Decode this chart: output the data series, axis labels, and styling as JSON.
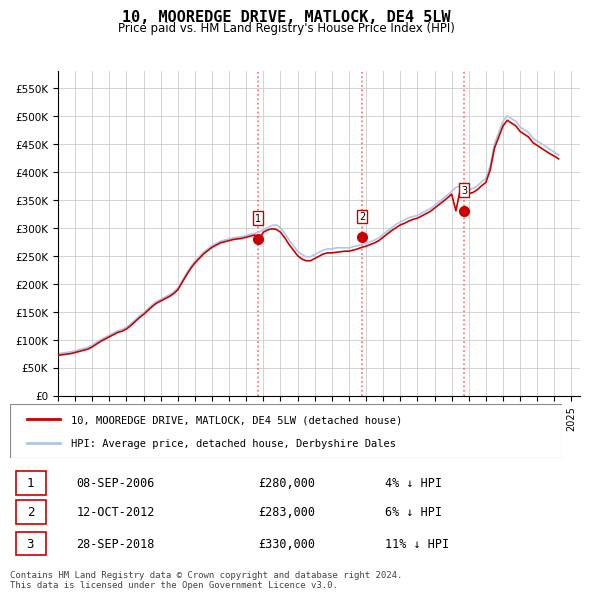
{
  "title": "10, MOOREDGE DRIVE, MATLOCK, DE4 5LW",
  "subtitle": "Price paid vs. HM Land Registry's House Price Index (HPI)",
  "ylabel_ticks": [
    "£0",
    "£50K",
    "£100K",
    "£150K",
    "£200K",
    "£250K",
    "£300K",
    "£350K",
    "£400K",
    "£450K",
    "£500K",
    "£550K"
  ],
  "ytick_values": [
    0,
    50000,
    100000,
    150000,
    200000,
    250000,
    300000,
    350000,
    400000,
    450000,
    500000,
    550000
  ],
  "ylim": [
    0,
    580000
  ],
  "xlim_start": 1995.0,
  "xlim_end": 2025.5,
  "hpi_color": "#aec6e8",
  "price_color": "#cc0000",
  "sale_marker_color": "#cc0000",
  "sale_marker_bg": "#cc0000",
  "vline_color": "#ff6666",
  "vline_style": "dotted",
  "grid_color": "#cccccc",
  "background_color": "#ffffff",
  "legend_label_red": "10, MOOREDGE DRIVE, MATLOCK, DE4 5LW (detached house)",
  "legend_label_blue": "HPI: Average price, detached house, Derbyshire Dales",
  "footer": "Contains HM Land Registry data © Crown copyright and database right 2024.\nThis data is licensed under the Open Government Licence v3.0.",
  "sales": [
    {
      "num": 1,
      "date": "08-SEP-2006",
      "price": 280000,
      "year": 2006.69,
      "hpi_pct": "4% ↓ HPI"
    },
    {
      "num": 2,
      "date": "12-OCT-2012",
      "price": 283000,
      "year": 2012.78,
      "hpi_pct": "6% ↓ HPI"
    },
    {
      "num": 3,
      "date": "28-SEP-2018",
      "price": 330000,
      "year": 2018.74,
      "hpi_pct": "11% ↓ HPI"
    }
  ],
  "hpi_years": [
    1995.0,
    1995.25,
    1995.5,
    1995.75,
    1996.0,
    1996.25,
    1996.5,
    1996.75,
    1997.0,
    1997.25,
    1997.5,
    1997.75,
    1998.0,
    1998.25,
    1998.5,
    1998.75,
    1999.0,
    1999.25,
    1999.5,
    1999.75,
    2000.0,
    2000.25,
    2000.5,
    2000.75,
    2001.0,
    2001.25,
    2001.5,
    2001.75,
    2002.0,
    2002.25,
    2002.5,
    2002.75,
    2003.0,
    2003.25,
    2003.5,
    2003.75,
    2004.0,
    2004.25,
    2004.5,
    2004.75,
    2005.0,
    2005.25,
    2005.5,
    2005.75,
    2006.0,
    2006.25,
    2006.5,
    2006.75,
    2007.0,
    2007.25,
    2007.5,
    2007.75,
    2008.0,
    2008.25,
    2008.5,
    2008.75,
    2009.0,
    2009.25,
    2009.5,
    2009.75,
    2010.0,
    2010.25,
    2010.5,
    2010.75,
    2011.0,
    2011.25,
    2011.5,
    2011.75,
    2012.0,
    2012.25,
    2012.5,
    2012.75,
    2013.0,
    2013.25,
    2013.5,
    2013.75,
    2014.0,
    2014.25,
    2014.5,
    2014.75,
    2015.0,
    2015.25,
    2015.5,
    2015.75,
    2016.0,
    2016.25,
    2016.5,
    2016.75,
    2017.0,
    2017.25,
    2017.5,
    2017.75,
    2018.0,
    2018.25,
    2018.5,
    2018.75,
    2019.0,
    2019.25,
    2019.5,
    2019.75,
    2020.0,
    2020.25,
    2020.5,
    2020.75,
    2021.0,
    2021.25,
    2021.5,
    2021.75,
    2022.0,
    2022.25,
    2022.5,
    2022.75,
    2023.0,
    2023.25,
    2023.5,
    2023.75,
    2024.0,
    2024.25
  ],
  "hpi_values": [
    75000,
    76000,
    77000,
    78000,
    80000,
    82000,
    84000,
    86000,
    90000,
    95000,
    100000,
    104000,
    108000,
    112000,
    116000,
    118000,
    122000,
    128000,
    135000,
    142000,
    148000,
    155000,
    162000,
    168000,
    172000,
    176000,
    180000,
    185000,
    192000,
    205000,
    218000,
    230000,
    240000,
    248000,
    256000,
    262000,
    268000,
    272000,
    276000,
    278000,
    280000,
    282000,
    283000,
    284000,
    286000,
    288000,
    290000,
    292000,
    296000,
    300000,
    304000,
    305000,
    300000,
    290000,
    278000,
    268000,
    258000,
    252000,
    248000,
    248000,
    252000,
    256000,
    260000,
    262000,
    262000,
    264000,
    264000,
    264000,
    264000,
    266000,
    268000,
    270000,
    272000,
    275000,
    278000,
    282000,
    288000,
    294000,
    300000,
    306000,
    310000,
    314000,
    318000,
    320000,
    322000,
    326000,
    330000,
    334000,
    340000,
    346000,
    352000,
    358000,
    365000,
    372000,
    375000,
    370000,
    368000,
    370000,
    375000,
    382000,
    388000,
    410000,
    450000,
    470000,
    490000,
    500000,
    495000,
    490000,
    480000,
    475000,
    470000,
    460000,
    455000,
    450000,
    445000,
    440000,
    435000,
    430000
  ],
  "price_years": [
    1995.0,
    1995.25,
    1995.5,
    1995.75,
    1996.0,
    1996.25,
    1996.5,
    1996.75,
    1997.0,
    1997.25,
    1997.5,
    1997.75,
    1998.0,
    1998.25,
    1998.5,
    1998.75,
    1999.0,
    1999.25,
    1999.5,
    1999.75,
    2000.0,
    2000.25,
    2000.5,
    2000.75,
    2001.0,
    2001.25,
    2001.5,
    2001.75,
    2002.0,
    2002.25,
    2002.5,
    2002.75,
    2003.0,
    2003.25,
    2003.5,
    2003.75,
    2004.0,
    2004.25,
    2004.5,
    2004.75,
    2005.0,
    2005.25,
    2005.5,
    2005.75,
    2006.0,
    2006.25,
    2006.5,
    2006.75,
    2007.0,
    2007.25,
    2007.5,
    2007.75,
    2008.0,
    2008.25,
    2008.5,
    2008.75,
    2009.0,
    2009.25,
    2009.5,
    2009.75,
    2010.0,
    2010.25,
    2010.5,
    2010.75,
    2011.0,
    2011.25,
    2011.5,
    2011.75,
    2012.0,
    2012.25,
    2012.5,
    2012.75,
    2013.0,
    2013.25,
    2013.5,
    2013.75,
    2014.0,
    2014.25,
    2014.5,
    2014.75,
    2015.0,
    2015.25,
    2015.5,
    2015.75,
    2016.0,
    2016.25,
    2016.5,
    2016.75,
    2017.0,
    2017.25,
    2017.5,
    2017.75,
    2018.0,
    2018.25,
    2018.5,
    2018.75,
    2019.0,
    2019.25,
    2019.5,
    2019.75,
    2020.0,
    2020.25,
    2020.5,
    2020.75,
    2021.0,
    2021.25,
    2021.5,
    2021.75,
    2022.0,
    2022.25,
    2022.5,
    2022.75,
    2023.0,
    2023.25,
    2023.5,
    2023.75,
    2024.0,
    2024.25
  ],
  "price_values": [
    72000,
    73000,
    74000,
    75000,
    77000,
    79000,
    81000,
    83000,
    87000,
    92000,
    97000,
    101000,
    105000,
    109000,
    113000,
    115000,
    119000,
    125000,
    132000,
    139000,
    145000,
    152000,
    159000,
    165000,
    169000,
    173000,
    177000,
    182000,
    189000,
    202000,
    215000,
    227000,
    237000,
    245000,
    253000,
    259000,
    265000,
    269000,
    273000,
    275000,
    277000,
    279000,
    280000,
    281000,
    283000,
    285000,
    287000,
    280000,
    292000,
    296000,
    298000,
    297000,
    292000,
    282000,
    270000,
    260000,
    250000,
    244000,
    241000,
    241000,
    245000,
    249000,
    253000,
    255000,
    255000,
    256000,
    257000,
    258000,
    258000,
    260000,
    262000,
    265000,
    267000,
    270000,
    273000,
    277000,
    283000,
    289000,
    295000,
    300000,
    305000,
    308000,
    312000,
    315000,
    317000,
    321000,
    325000,
    329000,
    335000,
    341000,
    347000,
    353000,
    360000,
    330000,
    368000,
    364000,
    361000,
    363000,
    368000,
    375000,
    381000,
    403000,
    442000,
    462000,
    482000,
    492000,
    487000,
    482000,
    472000,
    467000,
    462000,
    452000,
    447000,
    442000,
    437000,
    432000,
    428000,
    423000
  ]
}
